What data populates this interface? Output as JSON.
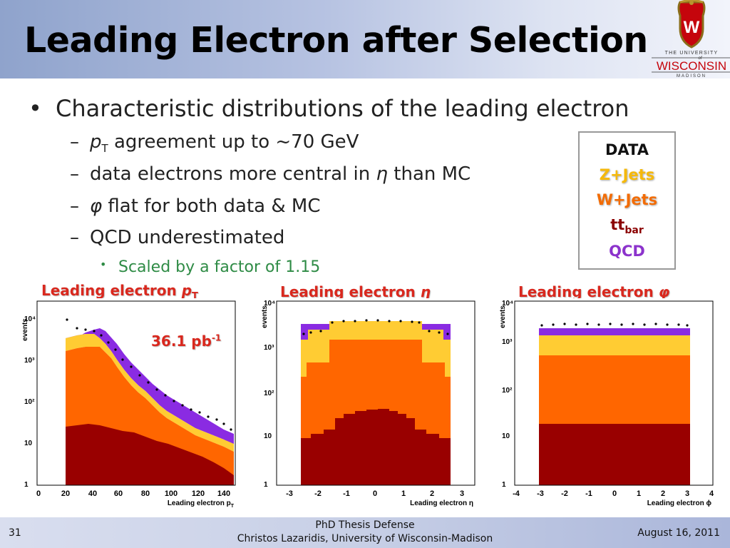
{
  "slide": {
    "title": "Leading Electron after Selection",
    "logo": {
      "line1": "THE UNIVERSITY",
      "line2": "of",
      "line3": "WISCONSIN",
      "line4": "MADISON",
      "crest_letter": "W"
    }
  },
  "bullets": {
    "main": "Characteristic distributions of the leading electron",
    "sub": [
      {
        "dash": "–",
        "prefix_italic": "p",
        "prefix_sub": "T",
        "text": " agreement up to ~70 GeV"
      },
      {
        "dash": "–",
        "text_before": "data electrons more central in ",
        "italic": "η",
        "text_after": " than MC"
      },
      {
        "dash": "–",
        "prefix_italic": "φ",
        "text": " flat for both data & MC"
      },
      {
        "dash": "–",
        "text": "QCD underestimated"
      }
    ],
    "subsub": "Scaled by a factor of 1.15"
  },
  "legend": {
    "items": [
      {
        "label": "DATA",
        "color": "#111111"
      },
      {
        "label": "Z+Jets",
        "color": "#f6b90a"
      },
      {
        "label": "W+Jets",
        "color": "#f36c04"
      },
      {
        "label": "tt",
        "sub": "bar",
        "color": "#8b0000"
      },
      {
        "label": "QCD",
        "color": "#8c33cc"
      }
    ]
  },
  "colors": {
    "qcd": "#8a2be2",
    "zjets": "#ffcc33",
    "wjets": "#ff6600",
    "ttbar": "#990000",
    "title_red": "#d9281e"
  },
  "plots": {
    "pt": {
      "title_prefix": "Leading electron ",
      "title_italic": "p",
      "title_sub": "T",
      "lumi": "36.1 pb",
      "lumi_sup": "-1",
      "ylabel": "events",
      "xlabel": "Leading electron p",
      "xlabel_sub": "T",
      "yticks": [
        "1",
        "10",
        "10²",
        "10³",
        "10⁴"
      ],
      "xticks": [
        "0",
        "20",
        "40",
        "60",
        "80",
        "100",
        "120",
        "140"
      ]
    },
    "eta": {
      "title_prefix": "Leading electron ",
      "title_italic": "η",
      "ylabel": "events",
      "xlabel": "Leading electron η",
      "yticks": [
        "1",
        "10",
        "10²",
        "10³",
        "10⁴"
      ],
      "xticks": [
        "-3",
        "-2",
        "-1",
        "0",
        "1",
        "2",
        "3"
      ]
    },
    "phi": {
      "title_prefix": "Leading electron ",
      "title_italic": "φ",
      "ylabel": "events",
      "xlabel": "Leading electron ϕ",
      "yticks": [
        "1",
        "10",
        "10²",
        "10³",
        "10⁴"
      ],
      "xticks": [
        "-4",
        "-3",
        "-2",
        "-1",
        "0",
        "1",
        "2",
        "3",
        "4"
      ]
    }
  },
  "footer": {
    "page_number": "31",
    "center_line1": "PhD Thesis Defense",
    "center_line2": "Christos Lazaridis, University of Wisconsin-Madison",
    "date": "August 16, 2011"
  }
}
